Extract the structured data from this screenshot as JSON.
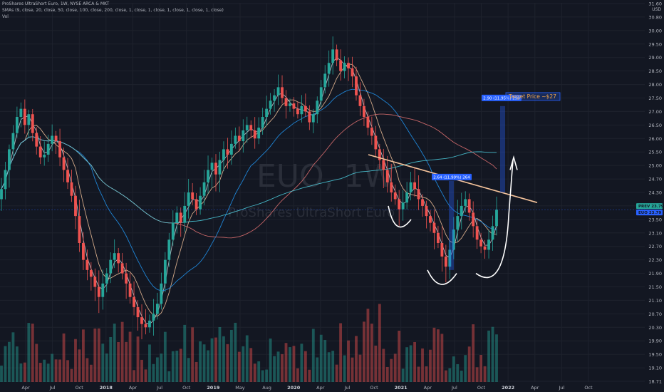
{
  "header": {
    "title": "ProShares UltraShort Euro, 1W, NYSE ARCA & MKT",
    "indicators": "SMAs (9, close, 20, close, 50, close, 100, close, 200, close, 1, close, 1, close, 1, close, 1, close, 1, close)",
    "volume": "Vol",
    "currency": "USD"
  },
  "watermark": {
    "symbol": "EUO, 1W",
    "name": "ProShares UltraShort Euro"
  },
  "chart_data": {
    "type": "candlestick",
    "y_ticks": [
      "31.60",
      "30.80",
      "30.00",
      "29.50",
      "29.00",
      "28.50",
      "28.00",
      "27.50",
      "27.00",
      "26.50",
      "26.00",
      "25.50",
      "25.00",
      "24.70",
      "24.30",
      "23.90",
      "23.50",
      "23.10",
      "22.70",
      "22.30",
      "21.90",
      "21.50",
      "21.10",
      "20.70",
      "20.30",
      "19.90",
      "19.50",
      "19.10",
      "18.71"
    ],
    "x_ticks": [
      "Apr",
      "Jul",
      "Oct",
      "2018",
      "Apr",
      "Jul",
      "Oct",
      "2019",
      "May",
      "Aug",
      "2020",
      "Apr",
      "Jul",
      "Oct",
      "2021",
      "Apr",
      "Jul",
      "Oct",
      "2022",
      "Apr",
      "Jul",
      "Oct"
    ],
    "y_range": [
      18.6,
      31.7
    ],
    "last_price": 23.79,
    "price_labels": [
      {
        "name": "PREV",
        "value": "23.79",
        "color": "#26a69a"
      },
      {
        "name": "EUO",
        "value": "23.79",
        "color": "#2962ff"
      }
    ],
    "measures": [
      {
        "text": "2.64 (11.99%) 264",
        "from": 22.0,
        "to": 24.64
      },
      {
        "text": "2.90 (11.95%) 290",
        "from": 24.3,
        "to": 27.2
      }
    ],
    "annotations": {
      "target": "Target Price ~$27",
      "neckline": {
        "from": 25.4,
        "to": 24.0
      }
    },
    "weekly_closes": [
      24.4,
      24.9,
      25.6,
      26.2,
      26.8,
      27.1,
      26.5,
      26.9,
      26.2,
      25.7,
      25.3,
      25.4,
      25.8,
      26.1,
      25.9,
      25.3,
      24.9,
      24.6,
      24.2,
      23.6,
      22.8,
      22.3,
      22.0,
      21.8,
      21.5,
      21.2,
      21.6,
      21.9,
      22.3,
      22.5,
      22.2,
      21.9,
      21.6,
      21.2,
      20.9,
      20.6,
      20.4,
      20.3,
      20.5,
      20.7,
      21.0,
      21.6,
      22.3,
      22.9,
      23.4,
      23.7,
      23.4,
      23.9,
      24.3,
      24.1,
      23.8,
      24.2,
      24.6,
      24.9,
      25.1,
      24.8,
      25.2,
      25.6,
      25.4,
      25.8,
      26.1,
      25.9,
      26.3,
      26.5,
      26.3,
      26.0,
      26.4,
      26.8,
      27.1,
      27.4,
      27.6,
      27.9,
      27.5,
      27.2,
      27.3,
      27.1,
      26.9,
      27.2,
      27.0,
      26.6,
      26.9,
      27.4,
      27.9,
      28.4,
      28.8,
      29.3,
      28.9,
      28.5,
      28.8,
      28.6,
      28.3,
      27.6,
      27.2,
      26.8,
      26.4,
      26.1,
      25.6,
      25.2,
      24.9,
      24.6,
      24.3,
      24.1,
      23.8,
      24.0,
      24.3,
      24.6,
      24.4,
      24.1,
      23.9,
      23.6,
      23.4,
      23.1,
      22.8,
      22.4,
      22.1,
      22.6,
      23.2,
      23.6,
      23.9,
      24.1,
      23.7,
      23.3,
      22.9,
      22.7,
      22.6,
      22.9,
      23.3,
      23.79
    ]
  }
}
